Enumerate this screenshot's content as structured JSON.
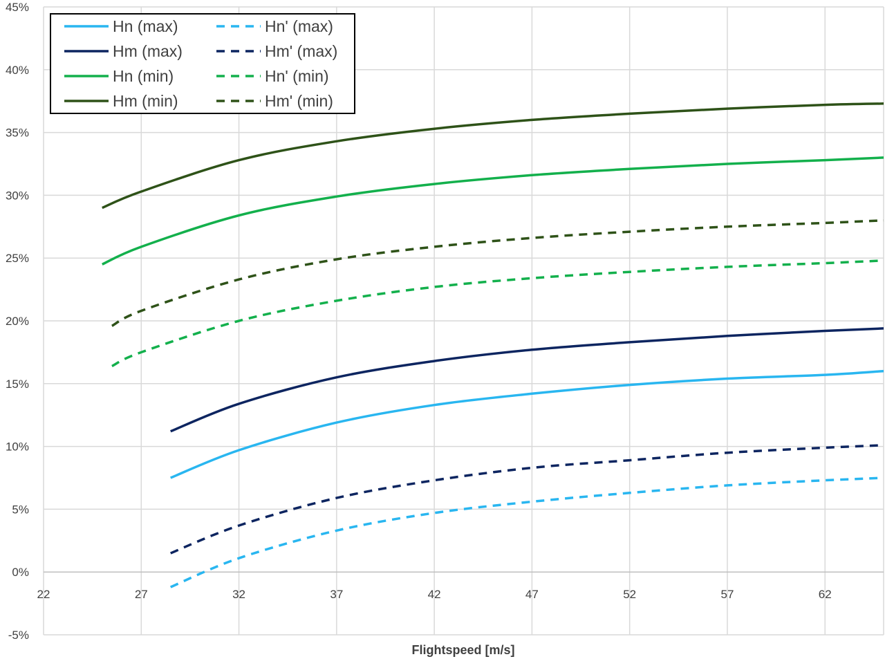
{
  "chart_data": {
    "type": "line",
    "title": "",
    "xlabel": "Flightspeed [m/s]",
    "ylabel": "",
    "xlim": [
      22,
      65
    ],
    "ylim": [
      -0.05,
      0.45
    ],
    "x_ticks": [
      "22",
      "27",
      "32",
      "37",
      "42",
      "47",
      "52",
      "57",
      "62"
    ],
    "y_ticks": [
      "-5%",
      "0%",
      "5%",
      "10%",
      "15%",
      "20%",
      "25%",
      "30%",
      "35%",
      "40%",
      "45%"
    ],
    "grid": true,
    "legend_position": "top-left",
    "series": [
      {
        "name": "Hn (max)",
        "color": "#29b6f0",
        "dashed": false,
        "x": [
          28.5,
          32,
          37,
          42,
          47,
          52,
          57,
          62,
          65
        ],
        "y": [
          0.075,
          0.097,
          0.119,
          0.133,
          0.142,
          0.149,
          0.154,
          0.157,
          0.16
        ]
      },
      {
        "name": "Hn' (max)",
        "color": "#29b6f0",
        "dashed": true,
        "x": [
          28.5,
          32,
          37,
          42,
          47,
          52,
          57,
          62,
          65
        ],
        "y": [
          -0.012,
          0.011,
          0.033,
          0.047,
          0.056,
          0.063,
          0.069,
          0.073,
          0.075
        ]
      },
      {
        "name": "Hm (max)",
        "color": "#0d2560",
        "dashed": false,
        "x": [
          28.5,
          32,
          37,
          42,
          47,
          52,
          57,
          62,
          65
        ],
        "y": [
          0.112,
          0.134,
          0.155,
          0.168,
          0.177,
          0.183,
          0.188,
          0.192,
          0.194
        ]
      },
      {
        "name": "Hm' (max)",
        "color": "#0d2560",
        "dashed": true,
        "x": [
          28.5,
          32,
          37,
          42,
          47,
          52,
          57,
          62,
          65
        ],
        "y": [
          0.015,
          0.037,
          0.059,
          0.073,
          0.083,
          0.089,
          0.095,
          0.099,
          0.101
        ]
      },
      {
        "name": "Hn (min)",
        "color": "#13b04c",
        "dashed": false,
        "x": [
          25,
          27,
          32,
          37,
          42,
          47,
          52,
          57,
          62,
          65
        ],
        "y": [
          0.245,
          0.259,
          0.284,
          0.299,
          0.309,
          0.316,
          0.321,
          0.325,
          0.328,
          0.33
        ]
      },
      {
        "name": "Hn' (min)",
        "color": "#13b04c",
        "dashed": true,
        "x": [
          25.5,
          27,
          32,
          37,
          42,
          47,
          52,
          57,
          62,
          65
        ],
        "y": [
          0.164,
          0.175,
          0.2,
          0.216,
          0.227,
          0.234,
          0.239,
          0.243,
          0.246,
          0.248
        ]
      },
      {
        "name": "Hm (min)",
        "color": "#2e5218",
        "dashed": false,
        "x": [
          25,
          27,
          32,
          37,
          42,
          47,
          52,
          57,
          62,
          65
        ],
        "y": [
          0.29,
          0.303,
          0.328,
          0.343,
          0.353,
          0.36,
          0.365,
          0.369,
          0.372,
          0.373
        ]
      },
      {
        "name": "Hm' (min)",
        "color": "#2e5218",
        "dashed": true,
        "x": [
          25.5,
          27,
          32,
          37,
          42,
          47,
          52,
          57,
          62,
          65
        ],
        "y": [
          0.196,
          0.208,
          0.233,
          0.249,
          0.259,
          0.266,
          0.271,
          0.275,
          0.278,
          0.28
        ]
      }
    ]
  }
}
